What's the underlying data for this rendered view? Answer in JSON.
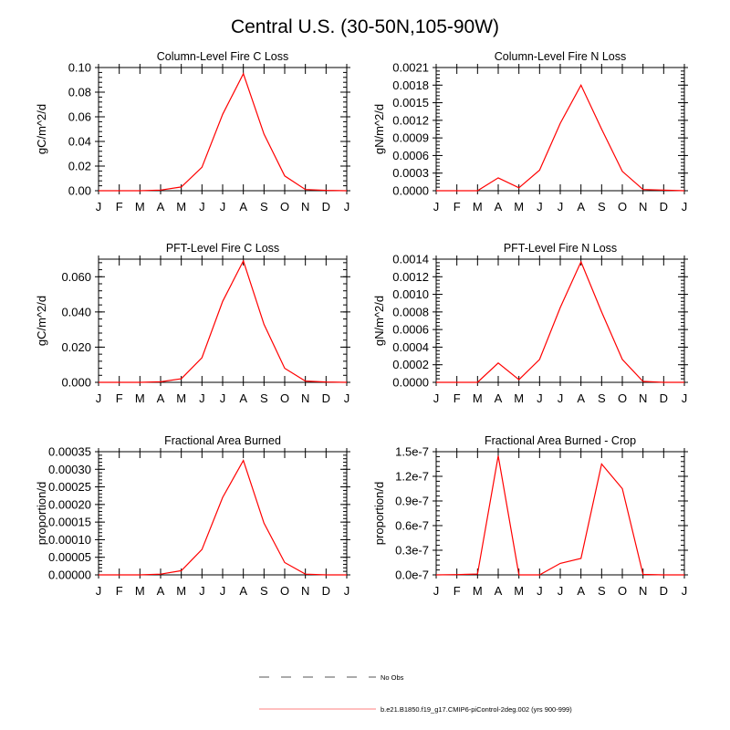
{
  "title": "Central U.S. (30-50N,105-90W)",
  "colors": {
    "model": "#ff0000",
    "obs": "#aaaaaa",
    "legend_model": "#ffaaaa"
  },
  "legend": [
    {
      "label": "No Obs",
      "style": "dashed",
      "color": "#aaaaaa"
    },
    {
      "label": "b.e21.B1850.f19_g17.CMIP6-piControl-2deg.002 (yrs 900-999)",
      "style": "solid",
      "color": "#ffaaaa"
    }
  ],
  "chart_data": [
    {
      "type": "line",
      "title": "Column-Level Fire C Loss",
      "ylabel": "gC/m^2/d",
      "ylim": [
        0,
        0.1
      ],
      "categories": [
        "J",
        "F",
        "M",
        "A",
        "M",
        "J",
        "J",
        "A",
        "S",
        "O",
        "N",
        "D",
        "J"
      ],
      "yticks": [
        "0.00",
        "0.02",
        "0.04",
        "0.06",
        "0.08",
        "0.10"
      ],
      "values": [
        0,
        0,
        0,
        0.0005,
        0.003,
        0.019,
        0.062,
        0.095,
        0.046,
        0.012,
        0.001,
        0.0003,
        0
      ]
    },
    {
      "type": "line",
      "title": "Column-Level Fire N Loss",
      "ylabel": "gN/m^2/d",
      "ylim": [
        0,
        0.0021
      ],
      "categories": [
        "J",
        "F",
        "M",
        "A",
        "M",
        "J",
        "J",
        "A",
        "S",
        "O",
        "N",
        "D",
        "J"
      ],
      "yticks": [
        "0.0000",
        "0.0003",
        "0.0006",
        "0.0009",
        "0.0012",
        "0.0015",
        "0.0018",
        "0.0021"
      ],
      "values": [
        0,
        0,
        0,
        0.00022,
        5e-05,
        0.00035,
        0.00115,
        0.0018,
        0.00105,
        0.00033,
        2e-05,
        1e-05,
        0
      ]
    },
    {
      "type": "line",
      "title": "PFT-Level Fire C Loss",
      "ylabel": "gC/m^2/d",
      "ylim": [
        0,
        0.07
      ],
      "categories": [
        "J",
        "F",
        "M",
        "A",
        "M",
        "J",
        "J",
        "A",
        "S",
        "O",
        "N",
        "D",
        "J"
      ],
      "yticks": [
        "0.000",
        "0.020",
        "0.040",
        "0.060"
      ],
      "ytick_values": [
        0,
        0.02,
        0.04,
        0.06
      ],
      "values": [
        0,
        0,
        0,
        0.0003,
        0.002,
        0.014,
        0.046,
        0.069,
        0.033,
        0.008,
        0.0007,
        0.0002,
        0
      ]
    },
    {
      "type": "line",
      "title": "PFT-Level Fire N Loss",
      "ylabel": "gN/m^2/d",
      "ylim": [
        0,
        0.0014
      ],
      "categories": [
        "J",
        "F",
        "M",
        "A",
        "M",
        "J",
        "J",
        "A",
        "S",
        "O",
        "N",
        "D",
        "J"
      ],
      "yticks": [
        "0.0000",
        "0.0002",
        "0.0004",
        "0.0006",
        "0.0008",
        "0.0010",
        "0.0012",
        "0.0014"
      ],
      "values": [
        0,
        0,
        0,
        0.00022,
        3e-05,
        0.00026,
        0.00085,
        0.00137,
        0.0008,
        0.00026,
        1e-05,
        0,
        0
      ]
    },
    {
      "type": "line",
      "title": "Fractional Area Burned",
      "ylabel": "proportion/d",
      "ylim": [
        0,
        0.00035
      ],
      "categories": [
        "J",
        "F",
        "M",
        "A",
        "M",
        "J",
        "J",
        "A",
        "S",
        "O",
        "N",
        "D",
        "J"
      ],
      "yticks": [
        "0.00000",
        "0.00005",
        "0.00010",
        "0.00015",
        "0.00020",
        "0.00025",
        "0.00030",
        "0.00035"
      ],
      "values": [
        0,
        0,
        0,
        2e-06,
        1.2e-05,
        7.2e-05,
        0.00022,
        0.000325,
        0.000147,
        3.5e-05,
        2e-06,
        0,
        0
      ]
    },
    {
      "type": "line",
      "title": "Fractional Area Burned - Crop",
      "ylabel": "proportion/d",
      "ylim": [
        0,
        1.5e-07
      ],
      "categories": [
        "J",
        "F",
        "M",
        "A",
        "M",
        "J",
        "J",
        "A",
        "S",
        "O",
        "N",
        "D",
        "J"
      ],
      "yticks": [
        "0.0e-7",
        "0.3e-7",
        "0.6e-7",
        "0.9e-7",
        "1.2e-7",
        "1.5e-7"
      ],
      "values": [
        0,
        3e-10,
        1e-09,
        1.45e-07,
        0,
        0,
        1.4e-08,
        2e-08,
        1.35e-07,
        1.05e-07,
        5e-10,
        0,
        0
      ]
    }
  ]
}
